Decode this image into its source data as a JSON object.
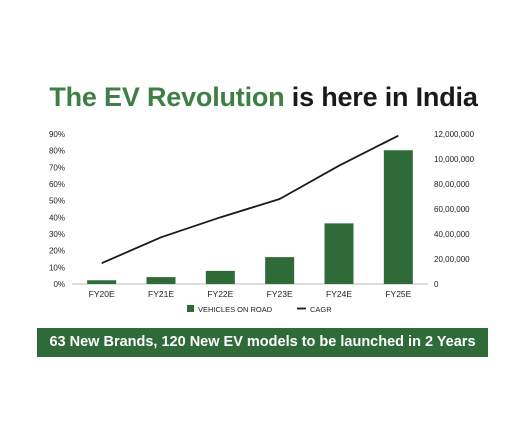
{
  "headline": {
    "accent": "The EV Revolution",
    "rest": "is here in India"
  },
  "colors": {
    "accent": "#3f7f45",
    "bar": "#2e6b39",
    "line": "#1a1a1a",
    "banner_bg": "#2e6b39"
  },
  "banner": {
    "text": "63 New Brands, 120 New EV models to be launched in 2 Years"
  },
  "chart_data": {
    "type": "bar",
    "categories": [
      "FY20E",
      "FY21E",
      "FY22E",
      "FY23E",
      "FY24E",
      "FY25E"
    ],
    "series": [
      {
        "name": "VEHICLES ON ROAD",
        "kind": "bar",
        "axis": "right",
        "values": [
          300000,
          550000,
          1050000,
          2150000,
          4850000,
          10700000
        ]
      },
      {
        "name": "CAGR",
        "kind": "line",
        "axis": "left",
        "values": [
          12.5,
          28,
          40,
          51,
          71,
          89
        ]
      }
    ],
    "left_axis": {
      "ylim": [
        0,
        90
      ],
      "ticks": [
        "0%",
        "10%",
        "20%",
        "30%",
        "40%",
        "50%",
        "60%",
        "70%",
        "80%",
        "90%"
      ]
    },
    "right_axis": {
      "ylim": [
        0,
        12000000
      ],
      "ticks": [
        "0",
        "20,00,000",
        "40,00,000",
        "60,00,000",
        "80,00,000",
        "10,000,000",
        "12,000,000"
      ]
    },
    "grid": false,
    "legend_position": "bottom"
  }
}
